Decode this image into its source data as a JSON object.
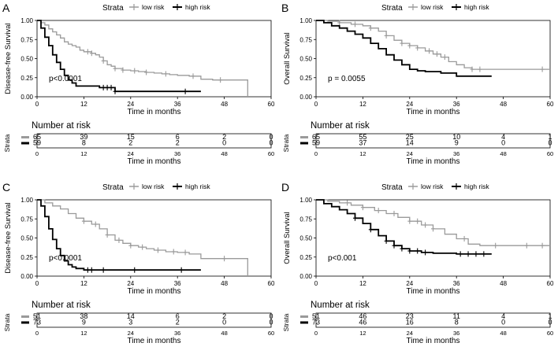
{
  "chart_data": [
    {
      "panel_label": "A",
      "type": "line",
      "subtype": "kaplan-meier",
      "legend_title": "Strata",
      "ylabel": "Disease-free Survival",
      "xlabel": "Time in months",
      "xlim": [
        0,
        60
      ],
      "ylim": [
        0,
        1
      ],
      "x_ticks": [
        "0",
        "12",
        "24",
        "36",
        "48",
        "60"
      ],
      "y_ticks": [
        "0.00",
        "0.25",
        "0.50",
        "0.75",
        "1.00"
      ],
      "annotation": "p<0.0001",
      "series": [
        {
          "name": "low risk",
          "color": "#9a9a9a",
          "x": [
            0,
            1,
            2,
            3,
            4,
            5,
            6,
            7,
            8,
            9,
            10,
            11,
            12,
            14,
            15,
            16,
            17,
            18,
            19,
            20,
            22,
            24,
            26,
            28,
            30,
            32,
            34,
            36,
            39,
            42,
            45,
            50,
            54
          ],
          "y": [
            1.0,
            0.97,
            0.94,
            0.89,
            0.85,
            0.81,
            0.77,
            0.72,
            0.69,
            0.67,
            0.65,
            0.61,
            0.59,
            0.57,
            0.55,
            0.52,
            0.47,
            0.42,
            0.4,
            0.37,
            0.35,
            0.34,
            0.33,
            0.32,
            0.31,
            0.3,
            0.29,
            0.28,
            0.27,
            0.23,
            0.22,
            0.22,
            0.0
          ],
          "censored_x": [
            13,
            14,
            17,
            20,
            22,
            25,
            28,
            33,
            40,
            47
          ]
        },
        {
          "name": "high risk",
          "color": "#000000",
          "x": [
            0,
            1,
            2,
            3,
            4,
            5,
            6,
            7,
            8,
            9,
            10,
            12,
            16,
            20,
            42
          ],
          "y": [
            1.0,
            0.9,
            0.78,
            0.67,
            0.55,
            0.45,
            0.36,
            0.28,
            0.22,
            0.18,
            0.14,
            0.14,
            0.12,
            0.07,
            0.07
          ],
          "censored_x": [
            17,
            18,
            19,
            20,
            38
          ]
        }
      ],
      "risk_table": {
        "title": "Number at risk",
        "strata_label": "Strata",
        "times": [
          "0",
          "12",
          "24",
          "36",
          "48",
          "60"
        ],
        "xlabel": "Time in months",
        "rows": [
          {
            "name": "low risk",
            "values": [
              "65",
              "39",
              "15",
              "6",
              "2",
              "0"
            ]
          },
          {
            "name": "high risk",
            "values": [
              "59",
              "8",
              "2",
              "2",
              "0",
              "0"
            ]
          }
        ]
      }
    },
    {
      "panel_label": "B",
      "type": "line",
      "subtype": "kaplan-meier",
      "legend_title": "Strata",
      "ylabel": "Overall Survival",
      "xlabel": "Time in months",
      "xlim": [
        0,
        60
      ],
      "ylim": [
        0,
        1
      ],
      "x_ticks": [
        "0",
        "12",
        "24",
        "36",
        "48",
        "60"
      ],
      "y_ticks": [
        "0.00",
        "0.25",
        "0.50",
        "0.75",
        "1.00"
      ],
      "annotation": "p = 0.0055",
      "series": [
        {
          "name": "low risk",
          "color": "#9a9a9a",
          "x": [
            0,
            3,
            6,
            9,
            12,
            14,
            16,
            18,
            20,
            22,
            24,
            26,
            28,
            30,
            32,
            34,
            36,
            38,
            40,
            60
          ],
          "y": [
            1.0,
            0.99,
            0.97,
            0.95,
            0.93,
            0.9,
            0.86,
            0.8,
            0.74,
            0.7,
            0.67,
            0.64,
            0.6,
            0.56,
            0.52,
            0.46,
            0.42,
            0.38,
            0.36,
            0.36
          ],
          "censored_x": [
            6,
            10,
            14,
            18,
            22,
            24,
            26,
            29,
            31,
            33,
            40,
            42,
            58
          ]
        },
        {
          "name": "high risk",
          "color": "#000000",
          "x": [
            0,
            2,
            4,
            6,
            8,
            10,
            12,
            14,
            16,
            18,
            20,
            22,
            24,
            26,
            28,
            32,
            36,
            45
          ],
          "y": [
            1.0,
            0.97,
            0.93,
            0.9,
            0.86,
            0.82,
            0.77,
            0.7,
            0.63,
            0.55,
            0.48,
            0.42,
            0.36,
            0.34,
            0.33,
            0.31,
            0.27,
            0.27
          ]
        }
      ],
      "risk_table": {
        "title": "Number at risk",
        "strata_label": "Strata",
        "times": [
          "0",
          "12",
          "24",
          "36",
          "48",
          "60"
        ],
        "xlabel": "Time in months",
        "rows": [
          {
            "name": "low risk",
            "values": [
              "65",
              "55",
              "25",
              "10",
              "4",
              "1"
            ]
          },
          {
            "name": "high risk",
            "values": [
              "59",
              "37",
              "14",
              "9",
              "0",
              "0"
            ]
          }
        ]
      }
    },
    {
      "panel_label": "C",
      "type": "line",
      "subtype": "kaplan-meier",
      "legend_title": "Strata",
      "ylabel": "Disease-free Survival",
      "xlabel": "Time in months",
      "xlim": [
        0,
        60
      ],
      "ylim": [
        0,
        1
      ],
      "x_ticks": [
        "0",
        "12",
        "24",
        "36",
        "48",
        "60"
      ],
      "y_ticks": [
        "0.00",
        "0.25",
        "0.50",
        "0.75",
        "1.00"
      ],
      "annotation": "p<0.0001",
      "series": [
        {
          "name": "low risk",
          "color": "#9a9a9a",
          "x": [
            0,
            2,
            4,
            6,
            8,
            10,
            12,
            14,
            16,
            18,
            20,
            22,
            24,
            26,
            28,
            30,
            33,
            36,
            39,
            42,
            54
          ],
          "y": [
            1.0,
            0.96,
            0.92,
            0.88,
            0.82,
            0.76,
            0.72,
            0.68,
            0.62,
            0.54,
            0.47,
            0.43,
            0.4,
            0.38,
            0.36,
            0.34,
            0.32,
            0.31,
            0.29,
            0.23,
            0.0
          ],
          "censored_x": [
            12,
            15,
            18,
            21,
            24,
            27,
            31,
            35,
            38,
            48
          ]
        },
        {
          "name": "high risk",
          "color": "#000000",
          "x": [
            0,
            1,
            2,
            3,
            4,
            5,
            6,
            7,
            8,
            9,
            10,
            12,
            14,
            24,
            42
          ],
          "y": [
            1.0,
            0.92,
            0.78,
            0.62,
            0.48,
            0.36,
            0.27,
            0.2,
            0.15,
            0.12,
            0.1,
            0.08,
            0.08,
            0.08,
            0.08
          ],
          "censored_x": [
            13,
            14,
            17,
            25,
            37
          ]
        }
      ],
      "risk_table": {
        "title": "Number at risk",
        "strata_label": "Strata",
        "times": [
          "0",
          "12",
          "24",
          "36",
          "48",
          "60"
        ],
        "xlabel": "Time in months",
        "rows": [
          {
            "name": "low risk",
            "values": [
              "51",
              "38",
              "14",
              "6",
              "2",
              "0"
            ]
          },
          {
            "name": "high risk",
            "values": [
              "73",
              "9",
              "3",
              "2",
              "0",
              "0"
            ]
          }
        ]
      }
    },
    {
      "panel_label": "D",
      "type": "line",
      "subtype": "kaplan-meier",
      "legend_title": "Strata",
      "ylabel": "Overall Survival",
      "xlabel": "Time in months",
      "xlim": [
        0,
        60
      ],
      "ylim": [
        0,
        1
      ],
      "x_ticks": [
        "0",
        "12",
        "24",
        "36",
        "48",
        "60"
      ],
      "y_ticks": [
        "0.00",
        "0.25",
        "0.50",
        "0.75",
        "1.00"
      ],
      "annotation": "p<0.001",
      "series": [
        {
          "name": "low risk",
          "color": "#9a9a9a",
          "x": [
            0,
            3,
            6,
            9,
            12,
            15,
            18,
            21,
            24,
            27,
            30,
            33,
            36,
            39,
            42,
            60
          ],
          "y": [
            1.0,
            0.98,
            0.96,
            0.93,
            0.9,
            0.86,
            0.82,
            0.77,
            0.72,
            0.67,
            0.62,
            0.55,
            0.49,
            0.42,
            0.4,
            0.4
          ],
          "censored_x": [
            8,
            12,
            16,
            20,
            24,
            26,
            28,
            30,
            38,
            46,
            54,
            58
          ]
        },
        {
          "name": "high risk",
          "color": "#000000",
          "x": [
            0,
            2,
            4,
            6,
            8,
            10,
            12,
            14,
            16,
            18,
            20,
            22,
            24,
            27,
            30,
            36,
            45
          ],
          "y": [
            1.0,
            0.95,
            0.91,
            0.87,
            0.82,
            0.76,
            0.69,
            0.61,
            0.53,
            0.46,
            0.4,
            0.36,
            0.33,
            0.31,
            0.3,
            0.29,
            0.29
          ],
          "censored_x": [
            10,
            14,
            18,
            20,
            22,
            24,
            26,
            28,
            37,
            39,
            41,
            43
          ]
        }
      ],
      "risk_table": {
        "title": "Number at risk",
        "strata_label": "Strata",
        "times": [
          "0",
          "12",
          "24",
          "36",
          "48",
          "60"
        ],
        "xlabel": "Time in months",
        "rows": [
          {
            "name": "low risk",
            "values": [
              "51",
              "46",
              "23",
              "11",
              "4",
              "1"
            ]
          },
          {
            "name": "high risk",
            "values": [
              "73",
              "46",
              "16",
              "8",
              "0",
              "0"
            ]
          }
        ]
      }
    }
  ]
}
